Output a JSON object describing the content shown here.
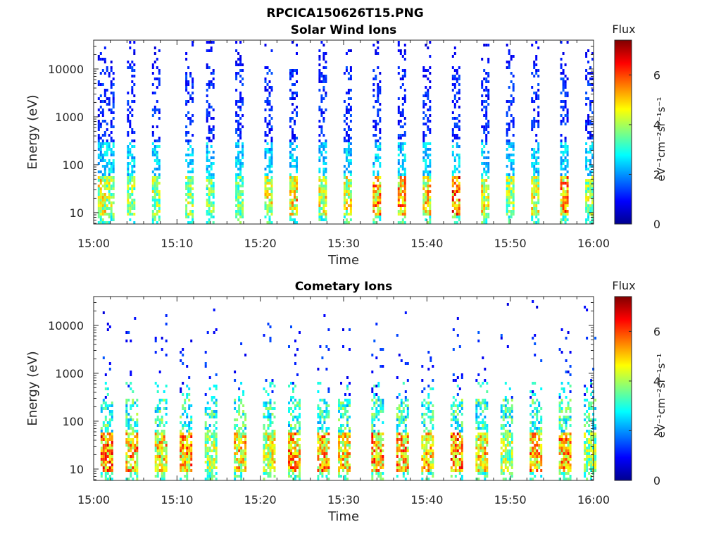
{
  "figure_title": "RPCICA150626T15.PNG",
  "chart_data": [
    {
      "type": "heatmap",
      "title": "Solar Wind Ions",
      "xlabel": "Time",
      "ylabel": "Energy (eV)",
      "x_ticks": [
        "15:00",
        "15:10",
        "15:20",
        "15:30",
        "15:40",
        "15:50",
        "16:00"
      ],
      "x_range": [
        "15:00",
        "16:00"
      ],
      "y_scale": "log",
      "y_ticks": [
        10,
        100,
        1000,
        10000
      ],
      "y_tick_labels": [
        "10",
        "100",
        "1000",
        "10000"
      ],
      "y_range": [
        5.8,
        40000
      ],
      "colorbar": {
        "title": "Flux",
        "label": "eV⁻¹cm⁻²sr⁻¹s⁻¹",
        "ticks": [
          0,
          2,
          4,
          6
        ],
        "tick_labels": [
          "0",
          "2",
          "4",
          "6"
        ],
        "range": [
          0,
          7.4
        ],
        "colormap": "jet"
      },
      "description": "Periodic vertical stripes roughly every 2.5 minutes; low-energy core (~10-50 eV) at flux 4-7, sparse high-energy counts up to ~30000 eV at flux ~1",
      "columns": [
        {
          "t": 1.0,
          "peak_flux": 5.5
        },
        {
          "t": 2.0,
          "peak_flux": 5.0
        },
        {
          "t": 4.5,
          "peak_flux": 5.0
        },
        {
          "t": 7.5,
          "peak_flux": 5.0
        },
        {
          "t": 11.5,
          "peak_flux": 5.0
        },
        {
          "t": 14.0,
          "peak_flux": 4.5
        },
        {
          "t": 17.5,
          "peak_flux": 4.5
        },
        {
          "t": 21.0,
          "peak_flux": 5.5
        },
        {
          "t": 24.0,
          "peak_flux": 6.0
        },
        {
          "t": 27.5,
          "peak_flux": 5.5
        },
        {
          "t": 30.5,
          "peak_flux": 5.5
        },
        {
          "t": 34.0,
          "peak_flux": 6.5
        },
        {
          "t": 37.0,
          "peak_flux": 6.5
        },
        {
          "t": 40.0,
          "peak_flux": 6.0
        },
        {
          "t": 43.5,
          "peak_flux": 7.0
        },
        {
          "t": 47.0,
          "peak_flux": 5.5
        },
        {
          "t": 50.0,
          "peak_flux": 5.0
        },
        {
          "t": 53.0,
          "peak_flux": 5.5
        },
        {
          "t": 56.5,
          "peak_flux": 6.5
        },
        {
          "t": 59.5,
          "peak_flux": 5.0
        }
      ]
    },
    {
      "type": "heatmap",
      "title": "Cometary Ions",
      "xlabel": "Time",
      "ylabel": "Energy (eV)",
      "x_ticks": [
        "15:00",
        "15:10",
        "15:20",
        "15:30",
        "15:40",
        "15:50",
        "16:00"
      ],
      "x_range": [
        "15:00",
        "16:00"
      ],
      "y_scale": "log",
      "y_ticks": [
        10,
        100,
        1000,
        10000
      ],
      "y_tick_labels": [
        "10",
        "100",
        "1000",
        "10000"
      ],
      "y_range": [
        5.8,
        40000
      ],
      "colorbar": {
        "title": "Flux",
        "label": "eV⁻¹cm⁻²sr⁻¹s⁻¹",
        "ticks": [
          0,
          2,
          4,
          6
        ],
        "tick_labels": [
          "0",
          "2",
          "4",
          "6"
        ],
        "range": [
          0,
          7.4
        ],
        "colormap": "jet"
      },
      "description": "Dense low-energy band (~10-100 eV) with red cores near 20-40 eV at flux 6-7, bursts extending to ~500 eV; sparse isolated counts up to ~30000 eV",
      "columns": [
        {
          "t": 1.5,
          "peak_flux": 7.0
        },
        {
          "t": 4.5,
          "peak_flux": 6.5
        },
        {
          "t": 8.0,
          "peak_flux": 6.0
        },
        {
          "t": 11.0,
          "peak_flux": 6.5
        },
        {
          "t": 14.0,
          "peak_flux": 5.0
        },
        {
          "t": 17.5,
          "peak_flux": 6.0
        },
        {
          "t": 21.0,
          "peak_flux": 5.5
        },
        {
          "t": 24.0,
          "peak_flux": 6.5
        },
        {
          "t": 27.5,
          "peak_flux": 6.5
        },
        {
          "t": 30.0,
          "peak_flux": 6.0
        },
        {
          "t": 34.0,
          "peak_flux": 6.5
        },
        {
          "t": 37.0,
          "peak_flux": 6.5
        },
        {
          "t": 40.0,
          "peak_flux": 6.0
        },
        {
          "t": 43.5,
          "peak_flux": 7.0
        },
        {
          "t": 46.5,
          "peak_flux": 6.0
        },
        {
          "t": 49.5,
          "peak_flux": 5.0
        },
        {
          "t": 53.0,
          "peak_flux": 6.5
        },
        {
          "t": 56.5,
          "peak_flux": 6.5
        },
        {
          "t": 59.5,
          "peak_flux": 5.0
        }
      ]
    }
  ]
}
